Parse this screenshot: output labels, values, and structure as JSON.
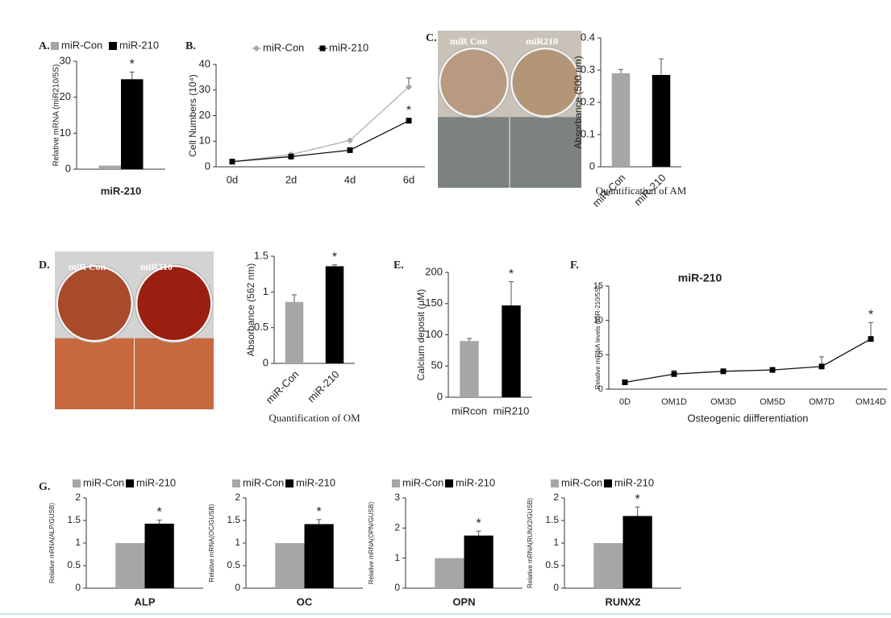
{
  "chart_data": [
    {
      "type": "bar",
      "panel": "A.",
      "ylabel": "Relative mRNA (miR210/5S)",
      "categories": [
        "miR-210"
      ],
      "series": [
        {
          "name": "miR-Con",
          "color": "#a6a6a6",
          "values": [
            1
          ]
        },
        {
          "name": "miR-210",
          "color": "#000000",
          "values": [
            25
          ],
          "errors": [
            2
          ],
          "annotations": [
            "*"
          ]
        }
      ],
      "ylim": [
        0,
        30
      ],
      "yticks": [
        0,
        10,
        20,
        30
      ]
    },
    {
      "type": "line",
      "panel": "B.",
      "ylabel": "Cell Numbers (10⁴)",
      "categories": [
        "0d",
        "2d",
        "4d",
        "6d"
      ],
      "series": [
        {
          "name": "miR-Con",
          "color": "#a6a6a6",
          "marker": "diamond",
          "values": [
            2,
            4.8,
            10.3,
            31.2
          ],
          "errors": [
            null,
            null,
            null,
            3.5
          ]
        },
        {
          "name": "miR-210",
          "color": "#000000",
          "marker": "square",
          "values": [
            2,
            4,
            6.5,
            18
          ],
          "errors": [
            null,
            null,
            null,
            1
          ],
          "annotations": [
            null,
            null,
            null,
            "*"
          ]
        }
      ],
      "ylim": [
        0,
        40
      ],
      "yticks": [
        0,
        10,
        20,
        30,
        40
      ]
    },
    {
      "type": "bar",
      "panel": "C.",
      "photo_labels": [
        "miR Con",
        "miR210"
      ],
      "ylabel": "Absorbance (500 nm)",
      "xlabel": "Quantification of AM",
      "categories": [
        "miR-Con",
        "miR-210"
      ],
      "values": [
        0.29,
        0.285
      ],
      "errors": [
        0.012,
        0.05
      ],
      "colors": [
        "#a6a6a6",
        "#000000"
      ],
      "ylim": [
        0,
        0.4
      ],
      "yticks": [
        0,
        0.1,
        0.2,
        0.3,
        0.4
      ]
    },
    {
      "type": "bar",
      "panel": "D.",
      "photo_labels": [
        "miR Con",
        "miR210"
      ],
      "ylabel": "Absorbance (562 nm)",
      "xlabel": "Quantification of OM",
      "categories": [
        "miR-Con",
        "miR-210"
      ],
      "values": [
        0.86,
        1.36
      ],
      "errors": [
        0.1,
        0.02
      ],
      "annotations": [
        null,
        "*"
      ],
      "colors": [
        "#a6a6a6",
        "#000000"
      ],
      "ylim": [
        0,
        1.5
      ],
      "yticks": [
        0,
        0.5,
        1,
        1.5
      ]
    },
    {
      "type": "bar",
      "panel": "E.",
      "ylabel": "Calcium deposit (μM)",
      "categories": [
        "miRcon",
        "miR210"
      ],
      "values": [
        90,
        147
      ],
      "errors": [
        4,
        38
      ],
      "annotations": [
        null,
        "*"
      ],
      "colors": [
        "#a6a6a6",
        "#000000"
      ],
      "ylim": [
        0,
        200
      ],
      "yticks": [
        0,
        50,
        100,
        150,
        200
      ]
    },
    {
      "type": "line",
      "panel": "F.",
      "title": "miR-210",
      "ylabel": "Relative miRNA levels (miR-210/5S)",
      "xlabel": "Osteogenic diifferentiation",
      "categories": [
        "0D",
        "OM1D",
        "OM3D",
        "OM5D",
        "OM7D",
        "OM14D"
      ],
      "values": [
        1,
        2.2,
        2.6,
        2.8,
        3.3,
        7.3
      ],
      "errors": [
        0.3,
        0.5,
        0.2,
        0.2,
        1.4,
        2.4
      ],
      "annotations": [
        null,
        null,
        null,
        null,
        null,
        "*"
      ],
      "color": "#000000",
      "marker": "square",
      "ylim": [
        0,
        15
      ],
      "yticks": [
        0,
        5,
        10,
        15
      ]
    },
    {
      "type": "bar",
      "panel": "G.",
      "ylabel": "Relative mRNA(ALP/GUSB)",
      "categories": [
        "ALP"
      ],
      "series": [
        {
          "name": "miR-Con",
          "color": "#a6a6a6",
          "values": [
            1
          ]
        },
        {
          "name": "miR-210",
          "color": "#000000",
          "values": [
            1.43
          ],
          "errors": [
            0.08
          ],
          "annotations": [
            "*"
          ]
        }
      ],
      "ylim": [
        0,
        2
      ],
      "yticks": [
        0,
        0.5,
        1,
        1.5,
        2
      ]
    },
    {
      "type": "bar",
      "ylabel": "Relative mRNA(OC/GUSB)",
      "categories": [
        "OC"
      ],
      "series": [
        {
          "name": "miR-Con",
          "color": "#a6a6a6",
          "values": [
            1
          ]
        },
        {
          "name": "miR-210",
          "color": "#000000",
          "values": [
            1.42
          ],
          "errors": [
            0.1
          ],
          "annotations": [
            "*"
          ]
        }
      ],
      "ylim": [
        0,
        2
      ],
      "yticks": [
        0,
        0.5,
        1,
        1.5,
        2
      ]
    },
    {
      "type": "bar",
      "ylabel": "Relative mRNA(OPN/GUSB)",
      "categories": [
        "OPN"
      ],
      "series": [
        {
          "name": "miR-Con",
          "color": "#a6a6a6",
          "values": [
            1
          ]
        },
        {
          "name": "miR-210",
          "color": "#000000",
          "values": [
            1.75
          ],
          "errors": [
            0.15
          ],
          "annotations": [
            "*"
          ]
        }
      ],
      "ylim": [
        0,
        3
      ],
      "yticks": [
        0,
        1,
        2,
        3
      ]
    },
    {
      "type": "bar",
      "ylabel": "Relative mRNA(RUNX2/GUSB)",
      "categories": [
        "RUNX2"
      ],
      "series": [
        {
          "name": "miR-Con",
          "color": "#a6a6a6",
          "values": [
            1
          ]
        },
        {
          "name": "miR-210",
          "color": "#000000",
          "values": [
            1.6
          ],
          "errors": [
            0.2
          ],
          "annotations": [
            "*"
          ]
        }
      ],
      "ylim": [
        0,
        2
      ],
      "yticks": [
        0,
        0.5,
        1,
        1.5,
        2
      ]
    }
  ]
}
